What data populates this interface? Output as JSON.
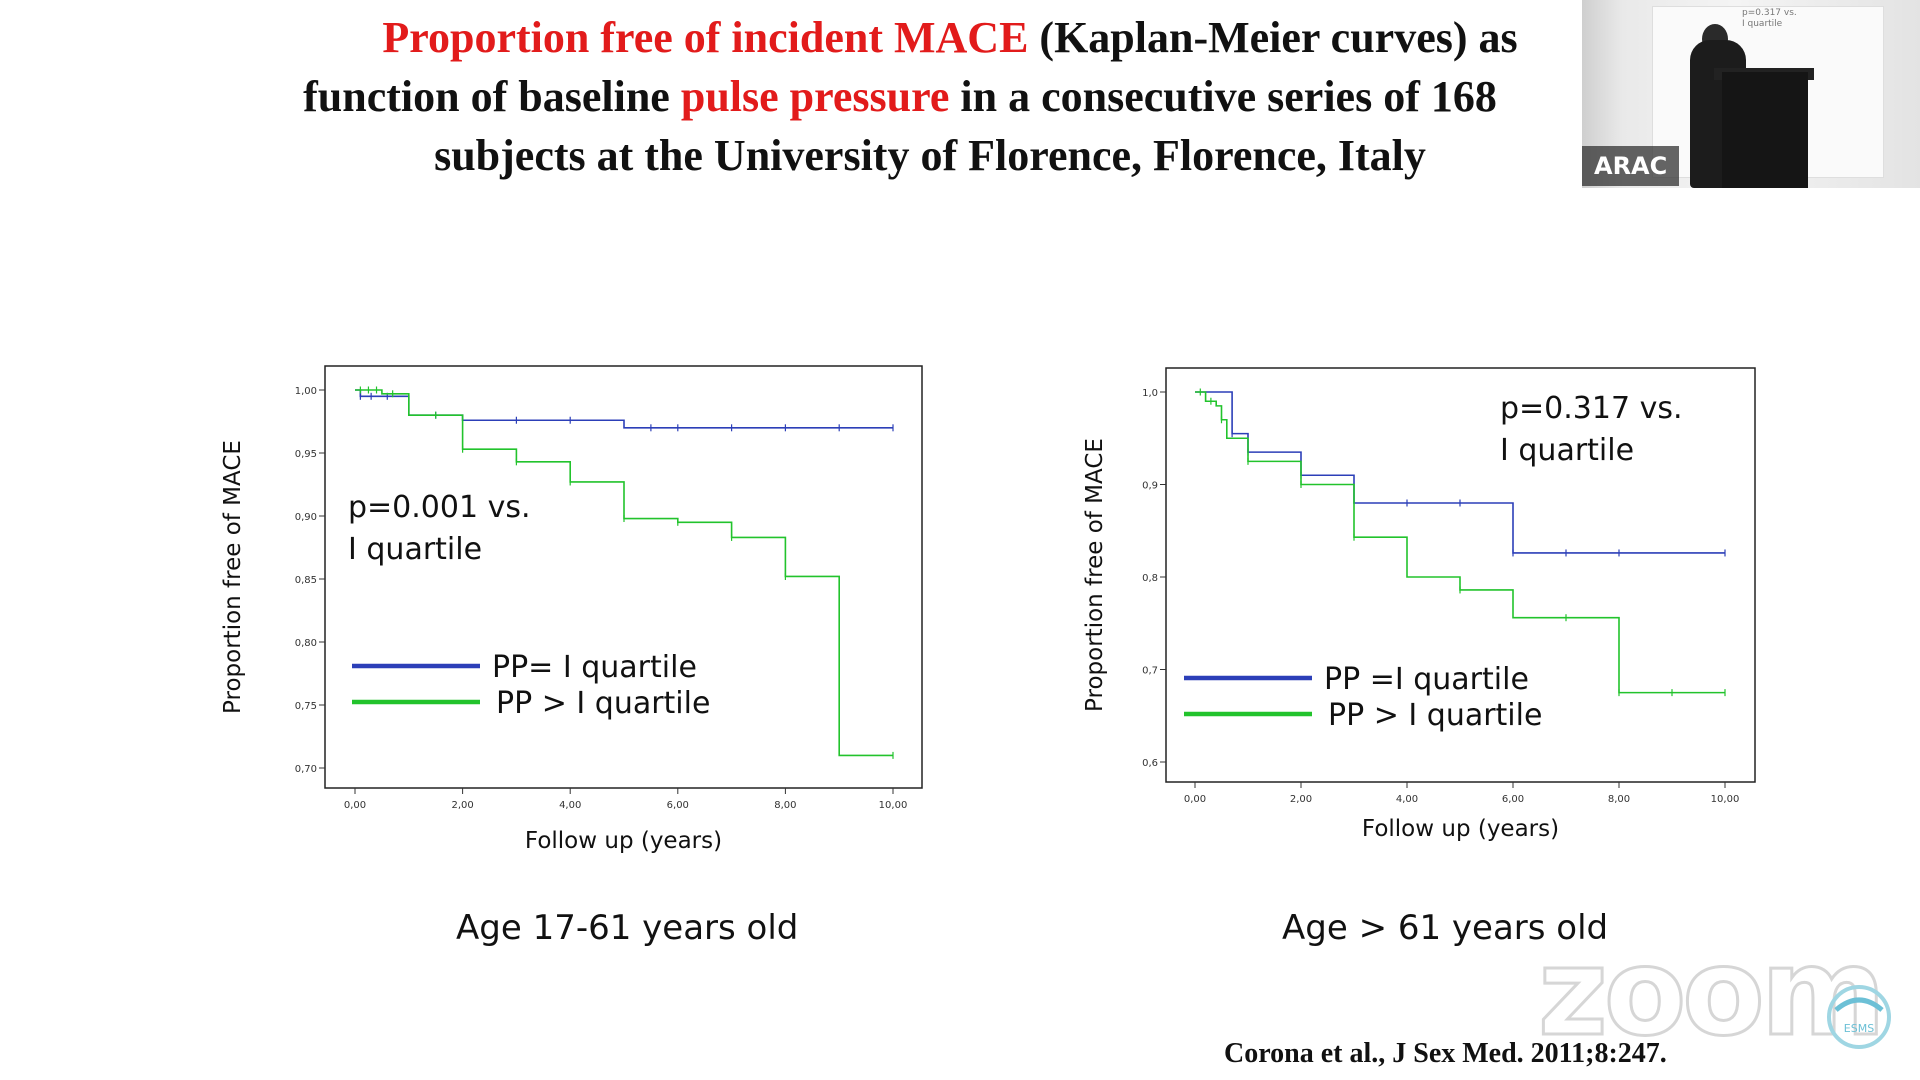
{
  "slide": {
    "title": {
      "line1_red": "Proportion free of incident MACE",
      "line1_rest": " (Kaplan-Meier curves) as",
      "line2_start": "function of baseline ",
      "line2_red": "pulse pressure",
      "line2_rest": "  in a consecutive series of 168",
      "line3": "subjects at the University of Florence, Florence, Italy"
    },
    "citation": "Corona et al., J Sex Med. 2011;8:247."
  },
  "webcam": {
    "name_tag": "ARAC",
    "mini_text_1": "p=0.317 vs.",
    "mini_text_2": "I quartile"
  },
  "watermark": {
    "zoom": "zoom",
    "logo": "ESMS"
  },
  "colors": {
    "blue_series": "#2c3fb8",
    "green_series": "#22c32c",
    "title_red": "#e21b1b"
  },
  "chart_data": [
    {
      "type": "line",
      "step": true,
      "title": "",
      "caption": "Age 17-61 years old",
      "xlabel": "Follow up (years)",
      "ylabel": "Proportion free of MACE",
      "xlim": [
        0,
        10
      ],
      "ylim": [
        0.7,
        1.0
      ],
      "x_ticks": [
        "0,00",
        "2,00",
        "4,00",
        "6,00",
        "8,00",
        "10,00"
      ],
      "x_tick_values": [
        0,
        2,
        4,
        6,
        8,
        10
      ],
      "y_ticks": [
        "0,70",
        "0,75",
        "0,80",
        "0,85",
        "0,90",
        "0,95",
        "1,00"
      ],
      "y_tick_values": [
        0.7,
        0.75,
        0.8,
        0.85,
        0.9,
        0.95,
        1.0
      ],
      "annotation_line1": "p=0.001 vs.",
      "annotation_line2": "I quartile",
      "series": [
        {
          "name": "PP= I quartile",
          "color": "#2c3fb8",
          "x": [
            0,
            0.1,
            0.2,
            1.0,
            2.0,
            5.0,
            10.0
          ],
          "y": [
            1.0,
            0.995,
            0.995,
            0.98,
            0.976,
            0.97,
            0.97
          ],
          "censor_x": [
            0.1,
            0.3,
            0.6,
            1.5,
            3.0,
            4.0,
            5.5,
            6.0,
            7.0,
            8.0,
            9.0,
            10.0
          ],
          "censor_y": [
            0.995,
            0.995,
            0.995,
            0.98,
            0.976,
            0.976,
            0.97,
            0.97,
            0.97,
            0.97,
            0.97,
            0.97
          ]
        },
        {
          "name": "PP > I quartile",
          "color": "#22c32c",
          "x": [
            0,
            0.5,
            1.0,
            2.0,
            3.0,
            4.0,
            5.0,
            6.0,
            7.0,
            8.0,
            9.0,
            10.0
          ],
          "y": [
            1.0,
            0.997,
            0.98,
            0.953,
            0.943,
            0.927,
            0.898,
            0.895,
            0.883,
            0.852,
            0.71,
            0.71
          ],
          "censor_x": [
            0.1,
            0.25,
            0.4,
            0.7,
            1.5,
            2.0,
            3.0,
            4.0,
            5.0,
            6.0,
            7.0,
            8.0,
            10.0
          ],
          "censor_y": [
            1.0,
            1.0,
            1.0,
            0.997,
            0.98,
            0.953,
            0.943,
            0.927,
            0.898,
            0.895,
            0.883,
            0.852,
            0.71
          ]
        }
      ]
    },
    {
      "type": "line",
      "step": true,
      "title": "",
      "caption": "Age  > 61 years old",
      "xlabel": "Follow up (years)",
      "ylabel": "Proportion free of MACE",
      "xlim": [
        0,
        10
      ],
      "ylim": [
        0.6,
        1.0
      ],
      "x_ticks": [
        "0,00",
        "2,00",
        "4,00",
        "6,00",
        "8,00",
        "10,00"
      ],
      "x_tick_values": [
        0,
        2,
        4,
        6,
        8,
        10
      ],
      "y_ticks": [
        "0,6",
        "0,7",
        "0,8",
        "0,9",
        "1,0"
      ],
      "y_tick_values": [
        0.6,
        0.7,
        0.8,
        0.9,
        1.0
      ],
      "annotation_line1": "p=0.317 vs.",
      "annotation_line2": "I quartile",
      "series": [
        {
          "name": "PP =I quartile",
          "color": "#2c3fb8",
          "x": [
            0,
            0.7,
            1.0,
            2.0,
            3.0,
            6.0,
            10.0
          ],
          "y": [
            1.0,
            0.955,
            0.935,
            0.91,
            0.88,
            0.826,
            0.826
          ],
          "censor_x": [
            0.7,
            1.0,
            2.0,
            4.0,
            5.0,
            6.0,
            7.0,
            8.0,
            10.0
          ],
          "censor_y": [
            0.955,
            0.935,
            0.91,
            0.88,
            0.88,
            0.826,
            0.826,
            0.826,
            0.826
          ],
          "censor_note": "censor marks"
        },
        {
          "name": "PP > I quartile",
          "color": "#22c32c",
          "x": [
            0,
            0.2,
            0.4,
            0.5,
            0.6,
            1.0,
            2.0,
            3.0,
            4.0,
            5.0,
            6.0,
            8.0,
            10.0
          ],
          "y": [
            1.0,
            0.99,
            0.985,
            0.97,
            0.95,
            0.925,
            0.9,
            0.843,
            0.8,
            0.786,
            0.756,
            0.675,
            0.675
          ],
          "censor_x": [
            0.1,
            0.3,
            0.5,
            1.0,
            2.0,
            3.0,
            5.0,
            7.0,
            8.0,
            9.0,
            10.0
          ],
          "censor_y": [
            1.0,
            0.99,
            0.97,
            0.925,
            0.9,
            0.843,
            0.786,
            0.756,
            0.675,
            0.675,
            0.675
          ]
        }
      ]
    }
  ]
}
